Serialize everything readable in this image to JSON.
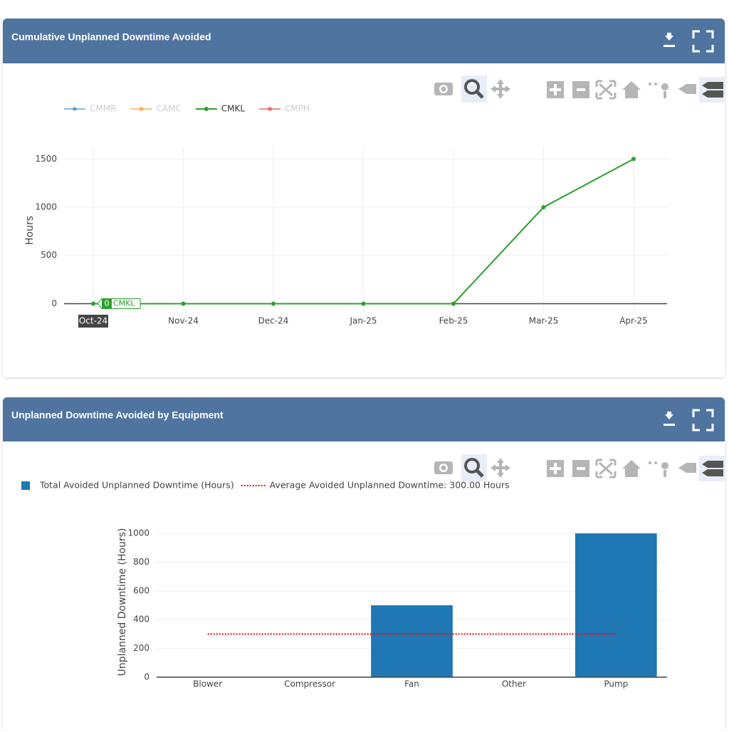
{
  "chart_data": [
    {
      "type": "line",
      "title": "Cumulative Unplanned Downtime Avoided",
      "y_label": "Hours",
      "categories": [
        "Oct-24",
        "Nov-24",
        "Dec-24",
        "Jan-25",
        "Feb-25",
        "Mar-25",
        "Apr-25"
      ],
      "series": [
        {
          "name": "CMMR",
          "color": "#1f77b4",
          "visible": "legendonly",
          "values": [
            null,
            null,
            null,
            null,
            null,
            null,
            null
          ]
        },
        {
          "name": "CAMC",
          "color": "#ff7f0e",
          "visible": "legendonly",
          "values": [
            null,
            null,
            null,
            null,
            null,
            null,
            null
          ]
        },
        {
          "name": "CMKL",
          "color": "#2ca02c",
          "visible": true,
          "values": [
            0,
            0,
            0,
            0,
            0,
            1000,
            1500
          ]
        },
        {
          "name": "CMPH",
          "color": "#d62728",
          "visible": "legendonly",
          "values": [
            null,
            null,
            null,
            null,
            null,
            null,
            null
          ]
        }
      ],
      "ylim": [
        -100,
        1620
      ],
      "yticks": [
        0,
        500,
        1000,
        1500
      ],
      "grid": true,
      "hover": {
        "series": 2,
        "index": 0
      }
    },
    {
      "type": "bar",
      "title": "Unplanned Downtime Avoided by Equipment",
      "y_label": "Unplanned Downtime (Hours)",
      "categories": [
        "Blower",
        "Compressor",
        "Fan",
        "Other",
        "Pump"
      ],
      "series": [
        {
          "name": "Total Avoided Unplanned Downtime (Hours)",
          "type": "bar",
          "color": "#1f77b4",
          "values": [
            0,
            0,
            500,
            0,
            1000
          ]
        },
        {
          "name": "Average Avoided Unplanned Downtime: 300.00 Hours",
          "type": "line",
          "dash": "dot",
          "color": "#ff0000",
          "values": [
            300,
            300,
            300,
            300,
            300
          ]
        }
      ],
      "ylim": [
        0,
        1045
      ],
      "yticks": [
        0,
        200,
        400,
        600,
        800,
        1000
      ],
      "grid": true
    }
  ]
}
